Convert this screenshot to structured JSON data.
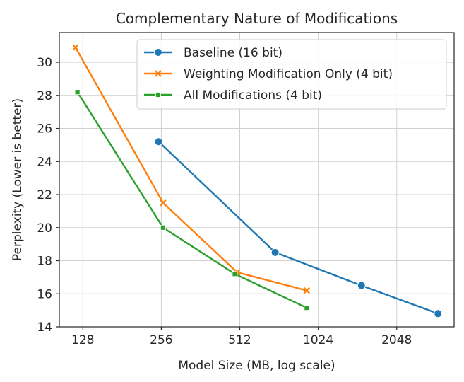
{
  "chart_data": {
    "type": "line",
    "title": "Complementary Nature of Modifications",
    "xlabel": "Model Size (MB, log scale)",
    "ylabel": "Perplexity (Lower is better)",
    "x_scale": "log2",
    "xlim": [
      104,
      3400
    ],
    "ylim": [
      14,
      31.8
    ],
    "x_ticks": [
      128,
      256,
      512,
      1024,
      2048
    ],
    "x_tick_labels": [
      "128",
      "256",
      "512",
      "1024",
      "2048"
    ],
    "y_ticks": [
      14,
      16,
      18,
      20,
      22,
      24,
      26,
      28,
      30
    ],
    "y_tick_labels": [
      "14",
      "16",
      "18",
      "20",
      "22",
      "24",
      "26",
      "28",
      "30"
    ],
    "grid": true,
    "legend_position": "top-right",
    "series": [
      {
        "name": "Baseline (16 bit)",
        "color": "#1f77b4",
        "marker": "circle",
        "x": [
          250,
          700,
          1500,
          2950
        ],
        "y": [
          25.2,
          18.5,
          16.5,
          14.8
        ]
      },
      {
        "name": "Weighting Modification Only (4 bit)",
        "color": "#ff7f0e",
        "marker": "x",
        "x": [
          120,
          260,
          500,
          925
        ],
        "y": [
          30.9,
          21.5,
          17.3,
          16.2
        ]
      },
      {
        "name": "All Modifications (4 bit)",
        "color": "#2ca02c",
        "marker": "square",
        "x": [
          122,
          260,
          490,
          925
        ],
        "y": [
          28.2,
          20.0,
          17.2,
          15.15
        ]
      }
    ]
  }
}
